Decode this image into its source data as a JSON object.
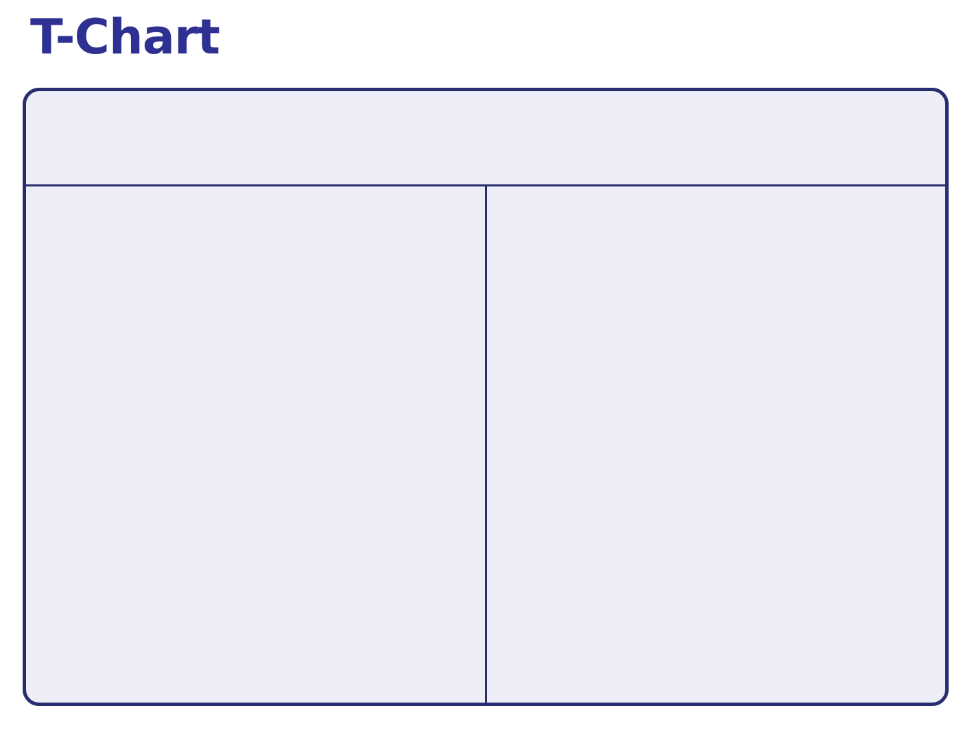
{
  "page": {
    "title": "T-Chart"
  },
  "tchart": {
    "header": "",
    "left_column": "",
    "right_column": ""
  },
  "colors": {
    "title_text": "#2E3192",
    "border": "#272D6F",
    "divider": "#272D6F",
    "fill": "#EDEDF8",
    "page_background": "#FFFFFF"
  }
}
